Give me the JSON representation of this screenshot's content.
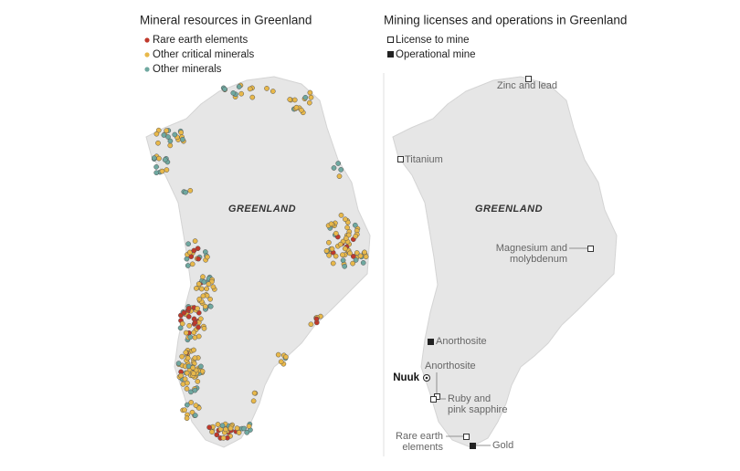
{
  "left_map": {
    "title": "Mineral resources in Greenland",
    "legend": [
      "Rare earth elements",
      "Other critical minerals",
      "Other minerals"
    ],
    "country_label": "GREENLAND"
  },
  "right_map": {
    "title": "Mining licenses and operations in Greenland",
    "legend": [
      "License to mine",
      "Operational mine"
    ],
    "country_label": "GREENLAND",
    "capital": "Nuuk",
    "sites": [
      {
        "label": "Zinc and lead"
      },
      {
        "label": "Titanium"
      },
      {
        "label": [
          "Magnesium and",
          "molybdenum"
        ]
      },
      {
        "label": "Anorthosite"
      },
      {
        "label": "Anorthosite"
      },
      {
        "label": [
          "Ruby and",
          "pink sapphire"
        ]
      },
      {
        "label": [
          "Rare earth",
          "elements"
        ]
      },
      {
        "label": "Gold"
      }
    ]
  }
}
